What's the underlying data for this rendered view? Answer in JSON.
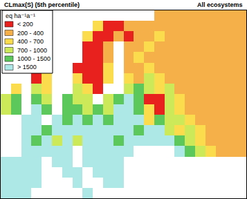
{
  "chart_data": {
    "type": "heatmap",
    "title": "CLmax(S) (5th percentile)",
    "subtitle": "All ecosystems",
    "legend_title": "eq ha⁻¹a⁻¹",
    "tick_labels": false,
    "zlim": [
      0,
      2500
    ],
    "class_breaks": [
      200,
      400,
      700,
      1000,
      1500
    ],
    "classes": [
      {
        "label": "< 200",
        "color": "#e8201e"
      },
      {
        "label": "200 - 400",
        "color": "#f6b04a"
      },
      {
        "label": "400 - 700",
        "color": "#fadc4c"
      },
      {
        "label": "700 - 1000",
        "color": "#cbe958"
      },
      {
        "label": "1000 - 1500",
        "color": "#5cc75a"
      },
      {
        "label": "> 1500",
        "color": "#aee8e6"
      }
    ],
    "cells": [
      [
        null,
        null,
        null,
        null,
        null,
        null,
        null,
        null,
        null,
        null,
        null,
        null,
        null,
        null,
        null,
        300,
        300,
        300,
        300,
        300,
        300,
        300,
        300,
        300
      ],
      [
        null,
        null,
        null,
        null,
        null,
        null,
        null,
        null,
        null,
        550,
        100,
        100,
        300,
        300,
        300,
        300,
        300,
        300,
        300,
        300,
        300,
        300,
        300,
        300
      ],
      [
        null,
        null,
        null,
        null,
        null,
        null,
        null,
        null,
        550,
        100,
        100,
        300,
        100,
        300,
        300,
        550,
        300,
        300,
        300,
        300,
        300,
        300,
        300,
        300
      ],
      [
        null,
        null,
        null,
        null,
        null,
        null,
        null,
        null,
        100,
        100,
        300,
        null,
        300,
        300,
        550,
        300,
        300,
        300,
        300,
        300,
        300,
        300,
        300,
        300
      ],
      [
        null,
        null,
        null,
        null,
        null,
        null,
        null,
        null,
        100,
        100,
        300,
        null,
        300,
        550,
        300,
        300,
        300,
        300,
        300,
        300,
        300,
        300,
        300,
        300
      ],
      [
        null,
        null,
        null,
        null,
        null,
        null,
        null,
        100,
        100,
        100,
        550,
        null,
        300,
        300,
        550,
        300,
        300,
        300,
        300,
        300,
        300,
        300,
        300,
        300
      ],
      [
        null,
        null,
        null,
        100,
        550,
        null,
        null,
        550,
        100,
        100,
        550,
        null,
        550,
        300,
        850,
        550,
        300,
        300,
        300,
        300,
        300,
        300,
        300,
        300
      ],
      [
        null,
        550,
        null,
        850,
        550,
        null,
        null,
        850,
        550,
        100,
        null,
        null,
        850,
        1250,
        850,
        550,
        850,
        300,
        300,
        300,
        300,
        300,
        300,
        300
      ],
      [
        850,
        1250,
        null,
        1250,
        850,
        null,
        1250,
        850,
        850,
        null,
        850,
        1250,
        2000,
        1250,
        100,
        100,
        850,
        550,
        300,
        300,
        300,
        300,
        300,
        300
      ],
      [
        850,
        1250,
        null,
        2000,
        1250,
        null,
        1250,
        1250,
        850,
        1250,
        850,
        2000,
        2000,
        1250,
        550,
        100,
        850,
        550,
        300,
        300,
        300,
        300,
        300,
        300
      ],
      [
        null,
        null,
        2000,
        2000,
        null,
        2000,
        1250,
        2000,
        1250,
        2000,
        1250,
        2000,
        2000,
        2000,
        550,
        1250,
        850,
        850,
        550,
        300,
        300,
        300,
        300,
        300
      ],
      [
        null,
        null,
        2000,
        2000,
        1250,
        2000,
        2000,
        2000,
        2000,
        2000,
        2000,
        2000,
        2000,
        1250,
        2000,
        2000,
        850,
        550,
        850,
        550,
        300,
        300,
        300,
        300
      ],
      [
        null,
        null,
        2000,
        1250,
        2000,
        850,
        2000,
        850,
        2000,
        2000,
        2000,
        1250,
        2000,
        2000,
        2000,
        2000,
        2000,
        1250,
        850,
        550,
        300,
        300,
        300,
        300
      ],
      [
        null,
        null,
        2000,
        2000,
        2000,
        2000,
        2000,
        null,
        2000,
        2000,
        2000,
        2000,
        2000,
        null,
        null,
        null,
        null,
        2000,
        1250,
        850,
        550,
        300,
        300,
        300
      ],
      [
        2000,
        2000,
        2000,
        2000,
        null,
        2000,
        2000,
        null,
        2000,
        2000,
        2000,
        2000,
        null,
        null,
        null,
        null,
        null,
        null,
        null,
        null,
        null,
        null,
        null,
        null
      ],
      [
        2000,
        2000,
        2000,
        2000,
        null,
        null,
        2000,
        2000,
        null,
        2000,
        2000,
        2000,
        null,
        null,
        null,
        null,
        null,
        null,
        null,
        null,
        null,
        null,
        null,
        null
      ],
      [
        2000,
        2000,
        2000,
        2000,
        null,
        null,
        null,
        2000,
        null,
        null,
        2000,
        2000,
        null,
        null,
        null,
        null,
        null,
        null,
        null,
        null,
        null,
        null,
        null,
        null
      ],
      [
        2000,
        2000,
        2000,
        null,
        null,
        null,
        null,
        null,
        2000,
        null,
        null,
        null,
        null,
        null,
        null,
        null,
        null,
        null,
        null,
        null,
        null,
        null,
        null,
        null
      ]
    ]
  }
}
